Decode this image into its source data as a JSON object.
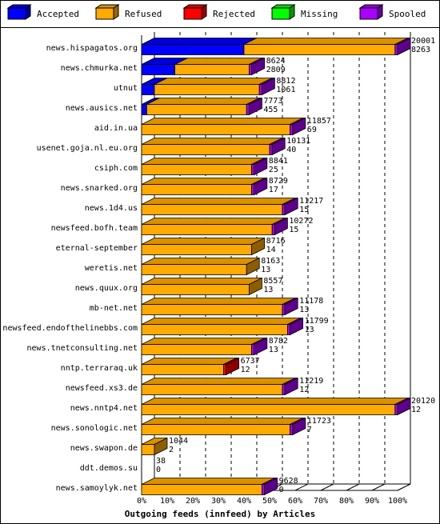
{
  "chart_data": {
    "type": "bar",
    "title": "Outgoing feeds (innfeed) by Articles",
    "legend": [
      {
        "name": "Accepted",
        "color": "#0000ff"
      },
      {
        "name": "Refused",
        "color": "#ffaa00"
      },
      {
        "name": "Rejected",
        "color": "#ff0000"
      },
      {
        "name": "Missing",
        "color": "#00ff00"
      },
      {
        "name": "Spooled",
        "color": "#aa00ff"
      }
    ],
    "legend_placement": "top",
    "xlim": [
      0,
      100
    ],
    "x_ticks": [
      "0%",
      "10%",
      "20%",
      "30%",
      "40%",
      "50%",
      "60%",
      "70%",
      "80%",
      "90%",
      "100%"
    ],
    "x_unit": "percent of offered articles",
    "categories": [
      "news.hispagatos.org",
      "news.chmurka.net",
      "utnut",
      "news.ausics.net",
      "aid.in.ua",
      "usenet.goja.nl.eu.org",
      "csiph.com",
      "news.snarked.org",
      "news.1d4.us",
      "newsfeed.bofh.team",
      "eternal-september",
      "weretis.net",
      "news.quux.org",
      "mb-net.net",
      "newsfeed.endofthelinebbs.com",
      "news.tnetconsulting.net",
      "nntp.terraraq.uk",
      "newsfeed.xs3.de",
      "news.nntp4.net",
      "news.sonologic.net",
      "news.swapon.de",
      "ddt.demos.su",
      "news.samoylyk.net"
    ],
    "value_labels_top": [
      "20001",
      "8624",
      "8812",
      "7773",
      "11857",
      "10131",
      "8841",
      "8729",
      "11217",
      "10272",
      "8716",
      "8163",
      "8557",
      "11178",
      "11799",
      "8782",
      "6737",
      "11219",
      "20120",
      "11723",
      "1044",
      "38",
      "9628"
    ],
    "value_labels_bottom": [
      "8263",
      "2809",
      "1061",
      "455",
      "69",
      "40",
      "25",
      "17",
      "15",
      "15",
      "14",
      "13",
      "13",
      "13",
      "13",
      "13",
      "12",
      "12",
      "12",
      "7",
      "2",
      "0",
      "0"
    ],
    "series": [
      {
        "name": "Accepted",
        "values": [
          40,
          13,
          5,
          2,
          0,
          0,
          0,
          0,
          0,
          0,
          0,
          0,
          0,
          0,
          0,
          0,
          0,
          0,
          0,
          0,
          0,
          0,
          0
        ]
      },
      {
        "name": "Refused",
        "values": [
          59,
          29,
          41,
          39,
          58,
          50,
          43,
          43,
          55,
          51,
          43,
          41,
          42,
          55,
          57,
          43,
          32,
          55,
          99,
          58,
          5,
          0,
          47
        ]
      },
      {
        "name": "Rejected",
        "values": [
          0,
          0,
          0,
          0,
          0,
          0,
          0,
          0,
          0,
          0,
          0,
          0,
          0,
          0,
          0,
          0,
          1,
          0,
          0,
          0,
          0,
          0,
          0
        ]
      },
      {
        "name": "Missing",
        "values": [
          0,
          0,
          0,
          0,
          0,
          0,
          0,
          0,
          0,
          0,
          0,
          0,
          0,
          0,
          0,
          0,
          0,
          0,
          0,
          0,
          0,
          0,
          0
        ]
      },
      {
        "name": "Spooled",
        "values": [
          1,
          1,
          1,
          1,
          1,
          1,
          1,
          1,
          1,
          1,
          0,
          0,
          0,
          1,
          1,
          1,
          0,
          1,
          1,
          1,
          0,
          0,
          1
        ]
      }
    ],
    "grid": true,
    "orientation": "horizontal",
    "bar_style": "3d"
  }
}
